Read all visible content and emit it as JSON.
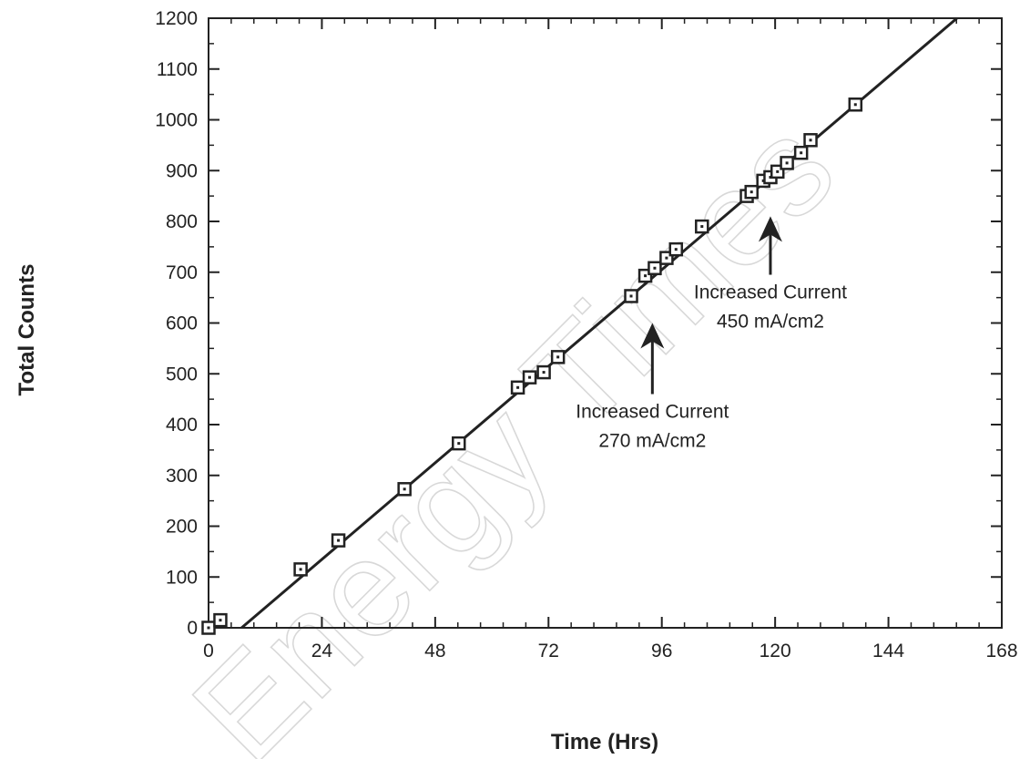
{
  "chart_data": {
    "type": "scatter",
    "xlabel": "Time (Hrs)",
    "ylabel": "Total Counts",
    "xlim": [
      0,
      168
    ],
    "ylim": [
      0,
      1200
    ],
    "x_ticks": [
      0,
      24,
      48,
      72,
      96,
      120,
      144,
      168
    ],
    "y_ticks": [
      0,
      100,
      200,
      300,
      400,
      500,
      600,
      700,
      800,
      900,
      1000,
      1100,
      1200
    ],
    "x_minor_step": 4.8,
    "y_minor_step": 50,
    "grid": false,
    "legend": "none",
    "series": [
      {
        "marker": "square",
        "points": [
          {
            "x": 0,
            "y": 0
          },
          {
            "x": 2.5,
            "y": 15
          },
          {
            "x": 19.5,
            "y": 115
          },
          {
            "x": 27.5,
            "y": 172
          },
          {
            "x": 41.5,
            "y": 273
          },
          {
            "x": 53,
            "y": 363
          },
          {
            "x": 65.5,
            "y": 473
          },
          {
            "x": 68,
            "y": 493
          },
          {
            "x": 71,
            "y": 503
          },
          {
            "x": 74,
            "y": 533
          },
          {
            "x": 89.5,
            "y": 653
          },
          {
            "x": 92.5,
            "y": 693
          },
          {
            "x": 94.5,
            "y": 708
          },
          {
            "x": 97,
            "y": 728
          },
          {
            "x": 99,
            "y": 745
          },
          {
            "x": 104.5,
            "y": 790
          },
          {
            "x": 114,
            "y": 850
          },
          {
            "x": 115,
            "y": 858
          },
          {
            "x": 117.5,
            "y": 880
          },
          {
            "x": 119,
            "y": 887
          },
          {
            "x": 120.5,
            "y": 898
          },
          {
            "x": 122.5,
            "y": 915
          },
          {
            "x": 125.5,
            "y": 935
          },
          {
            "x": 127.5,
            "y": 960
          },
          {
            "x": 137,
            "y": 1030
          }
        ]
      }
    ],
    "fit_line": {
      "x1": 7,
      "y1": 0,
      "x2": 158.5,
      "y2": 1200
    },
    "annotations": [
      {
        "lines": [
          "Increased Current",
          "270 mA/cm2"
        ],
        "arrow_x": 94,
        "arrow_tip_y": 600,
        "arrow_tail_y": 460
      },
      {
        "lines": [
          "Increased Current",
          "450 mA/cm2"
        ],
        "arrow_x": 119,
        "arrow_tip_y": 810,
        "arrow_tail_y": 695
      }
    ],
    "watermark": "Energy Times"
  },
  "colors": {
    "ink": "#222222",
    "watermark": "#d8d8d8",
    "background": "#ffffff"
  }
}
